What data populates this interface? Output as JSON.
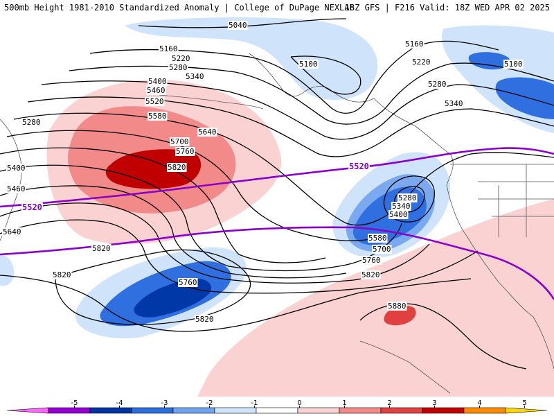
{
  "header": {
    "title": "500mb Height 1981-2010 Standardized Anomaly | College of DuPage NEXLAB",
    "valid": "18Z GFS | F216 Valid: 18Z WED APR 02 2025"
  },
  "colors": {
    "neg_4": "#0038a8",
    "neg_3": "#2f6fe0",
    "neg_2": "#7aa9f0",
    "neg_1": "#cfe3fb",
    "pos_1": "#fbd2d2",
    "pos_2": "#f28a8a",
    "pos_3": "#e04040",
    "pos_4": "#c00000",
    "contour": "#000000",
    "reference_contour": "#8b00c9",
    "coast": "#555555"
  },
  "contour_labels": [
    "5040",
    "5100",
    "5160",
    "5220",
    "5280",
    "5340",
    "5400",
    "5460",
    "5520",
    "5580",
    "5640",
    "5700",
    "5760",
    "5820",
    "5880"
  ],
  "reference_contour_label": "5520",
  "colorbar": {
    "ticks": [
      "-5",
      "-4",
      "-3",
      "-2",
      "-1",
      "0",
      "1",
      "2",
      "3",
      "4",
      "5"
    ],
    "range": [
      -6,
      6
    ],
    "segment_colors": [
      "#ff66ff",
      "#9400d3",
      "#0033a0",
      "#2a6fdb",
      "#6fa4ee",
      "#cfe3fb",
      "#ffffff",
      "#fbd2d2",
      "#f28a8a",
      "#e04040",
      "#c00000",
      "#ff8c00",
      "#ffd700"
    ]
  }
}
